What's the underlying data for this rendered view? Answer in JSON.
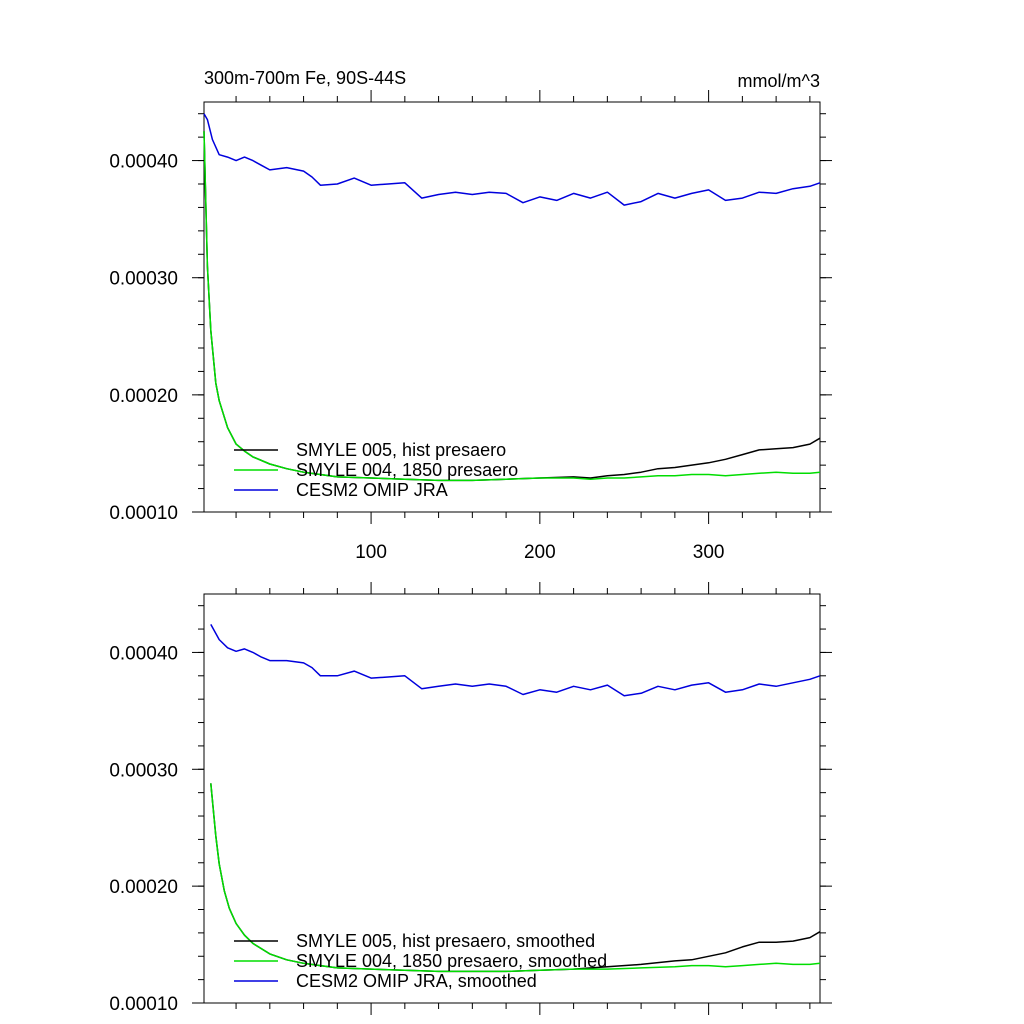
{
  "chart_data": [
    {
      "type": "line",
      "title": "300m-700m Fe, 90S-44S",
      "units": "mmol/m^3",
      "xlabel": "",
      "ylabel": "",
      "xlim": [
        1,
        366
      ],
      "ylim": [
        0.0001,
        0.00045
      ],
      "xticks": [
        100,
        200,
        300
      ],
      "xtick_labels": [
        "100",
        "200",
        "300"
      ],
      "yticks": [
        0.0001,
        0.0002,
        0.0003,
        0.0004
      ],
      "ytick_labels": [
        "0.00010",
        "0.00020",
        "0.00030",
        "0.00040"
      ],
      "show_xtick_labels": true,
      "grid": false,
      "legend_position": "bottom-left",
      "series": [
        {
          "name": "SMYLE 005, hist presaero",
          "color": "#000000",
          "x": [
            1,
            3,
            5,
            8,
            10,
            15,
            20,
            25,
            30,
            40,
            50,
            60,
            70,
            80,
            100,
            120,
            140,
            160,
            180,
            200,
            220,
            230,
            240,
            250,
            260,
            270,
            280,
            290,
            300,
            310,
            320,
            330,
            340,
            350,
            360,
            366
          ],
          "y": [
            0.000425,
            0.00031,
            0.000255,
            0.00021,
            0.000195,
            0.000172,
            0.000158,
            0.000152,
            0.000147,
            0.000141,
            0.000137,
            0.000134,
            0.000132,
            0.00013,
            0.000129,
            0.000128,
            0.000127,
            0.000127,
            0.000128,
            0.000129,
            0.00013,
            0.000129,
            0.000131,
            0.000132,
            0.000134,
            0.000137,
            0.000138,
            0.00014,
            0.000142,
            0.000145,
            0.000149,
            0.000153,
            0.000154,
            0.000155,
            0.000158,
            0.000163
          ]
        },
        {
          "name": "SMYLE 004, 1850 presaero",
          "color": "#00dd00",
          "x": [
            1,
            3,
            5,
            8,
            10,
            15,
            20,
            25,
            30,
            40,
            50,
            60,
            70,
            80,
            100,
            120,
            140,
            160,
            180,
            200,
            220,
            230,
            240,
            250,
            260,
            270,
            280,
            290,
            300,
            310,
            320,
            330,
            340,
            350,
            360,
            366
          ],
          "y": [
            0.000425,
            0.00031,
            0.000255,
            0.00021,
            0.000195,
            0.000172,
            0.000158,
            0.000152,
            0.000147,
            0.000141,
            0.000137,
            0.000134,
            0.000132,
            0.00013,
            0.000129,
            0.000128,
            0.000127,
            0.000127,
            0.000128,
            0.000129,
            0.000129,
            0.000128,
            0.000129,
            0.000129,
            0.00013,
            0.000131,
            0.000131,
            0.000132,
            0.000132,
            0.000131,
            0.000132,
            0.000133,
            0.000134,
            0.000133,
            0.000133,
            0.000134
          ]
        },
        {
          "name": "CESM2 OMIP JRA",
          "color": "#0000dd",
          "x": [
            1,
            3,
            6,
            10,
            15,
            20,
            25,
            30,
            35,
            40,
            50,
            60,
            65,
            70,
            80,
            90,
            100,
            110,
            120,
            130,
            140,
            150,
            160,
            170,
            180,
            190,
            200,
            210,
            220,
            230,
            240,
            250,
            260,
            270,
            280,
            290,
            300,
            310,
            320,
            330,
            340,
            350,
            360,
            366
          ],
          "y": [
            0.00044,
            0.000435,
            0.000418,
            0.000405,
            0.000403,
            0.0004,
            0.000403,
            0.0004,
            0.000396,
            0.000392,
            0.000394,
            0.000391,
            0.000386,
            0.000379,
            0.00038,
            0.000385,
            0.000379,
            0.00038,
            0.000381,
            0.000368,
            0.000371,
            0.000373,
            0.000371,
            0.000373,
            0.000372,
            0.000364,
            0.000369,
            0.000366,
            0.000372,
            0.000368,
            0.000373,
            0.000362,
            0.000365,
            0.000372,
            0.000368,
            0.000372,
            0.000375,
            0.000366,
            0.000368,
            0.000373,
            0.000372,
            0.000376,
            0.000378,
            0.000381
          ]
        }
      ]
    },
    {
      "type": "line",
      "title": "",
      "units": "",
      "xlabel": "",
      "ylabel": "",
      "xlim": [
        1,
        366
      ],
      "ylim": [
        0.0001,
        0.00045
      ],
      "xticks": [
        100,
        200,
        300
      ],
      "xtick_labels": [
        "",
        "",
        ""
      ],
      "yticks": [
        0.0001,
        0.0002,
        0.0003,
        0.0004
      ],
      "ytick_labels": [
        "0.00010",
        "0.00020",
        "0.00030",
        "0.00040"
      ],
      "show_xtick_labels": false,
      "grid": false,
      "legend_position": "bottom-left",
      "series": [
        {
          "name": "SMYLE 005, hist presaero, smoothed",
          "color": "#000000",
          "x": [
            5,
            8,
            10,
            13,
            16,
            20,
            25,
            30,
            40,
            50,
            60,
            70,
            80,
            100,
            120,
            140,
            160,
            180,
            200,
            220,
            240,
            260,
            280,
            290,
            300,
            310,
            320,
            330,
            340,
            350,
            360,
            366
          ],
          "y": [
            0.000288,
            0.000243,
            0.000219,
            0.000196,
            0.000181,
            0.000168,
            0.000158,
            0.000151,
            0.000142,
            0.000137,
            0.000134,
            0.000132,
            0.00013,
            0.000129,
            0.000128,
            0.000127,
            0.000127,
            0.000127,
            0.000128,
            0.000129,
            0.000131,
            0.000133,
            0.000136,
            0.000137,
            0.00014,
            0.000143,
            0.000148,
            0.000152,
            0.000152,
            0.000153,
            0.000156,
            0.000161
          ]
        },
        {
          "name": "SMYLE 004, 1850 presaero, smoothed",
          "color": "#00dd00",
          "x": [
            5,
            8,
            10,
            13,
            16,
            20,
            25,
            30,
            40,
            50,
            60,
            70,
            80,
            100,
            120,
            140,
            160,
            180,
            200,
            220,
            240,
            260,
            280,
            290,
            300,
            310,
            320,
            330,
            340,
            350,
            360,
            366
          ],
          "y": [
            0.000288,
            0.000243,
            0.000219,
            0.000196,
            0.000181,
            0.000168,
            0.000158,
            0.000151,
            0.000142,
            0.000137,
            0.000134,
            0.000132,
            0.00013,
            0.000129,
            0.000128,
            0.000127,
            0.000127,
            0.000127,
            0.000128,
            0.000129,
            0.000129,
            0.00013,
            0.000131,
            0.000132,
            0.000132,
            0.000131,
            0.000132,
            0.000133,
            0.000134,
            0.000133,
            0.000133,
            0.000134
          ]
        },
        {
          "name": "CESM2 OMIP JRA, smoothed",
          "color": "#0000dd",
          "x": [
            5,
            10,
            15,
            20,
            25,
            30,
            35,
            40,
            50,
            60,
            65,
            70,
            80,
            90,
            100,
            110,
            120,
            130,
            140,
            150,
            160,
            170,
            180,
            190,
            200,
            210,
            220,
            230,
            240,
            250,
            260,
            270,
            280,
            290,
            300,
            310,
            320,
            330,
            340,
            350,
            360,
            366
          ],
          "y": [
            0.000424,
            0.000411,
            0.000404,
            0.000401,
            0.000403,
            0.0004,
            0.000396,
            0.000393,
            0.000393,
            0.000391,
            0.000387,
            0.00038,
            0.00038,
            0.000384,
            0.000378,
            0.000379,
            0.00038,
            0.000369,
            0.000371,
            0.000373,
            0.000371,
            0.000373,
            0.000371,
            0.000364,
            0.000368,
            0.000366,
            0.000371,
            0.000368,
            0.000372,
            0.000363,
            0.000365,
            0.000371,
            0.000368,
            0.000372,
            0.000374,
            0.000366,
            0.000368,
            0.000373,
            0.000371,
            0.000374,
            0.000377,
            0.00038
          ]
        }
      ]
    }
  ]
}
